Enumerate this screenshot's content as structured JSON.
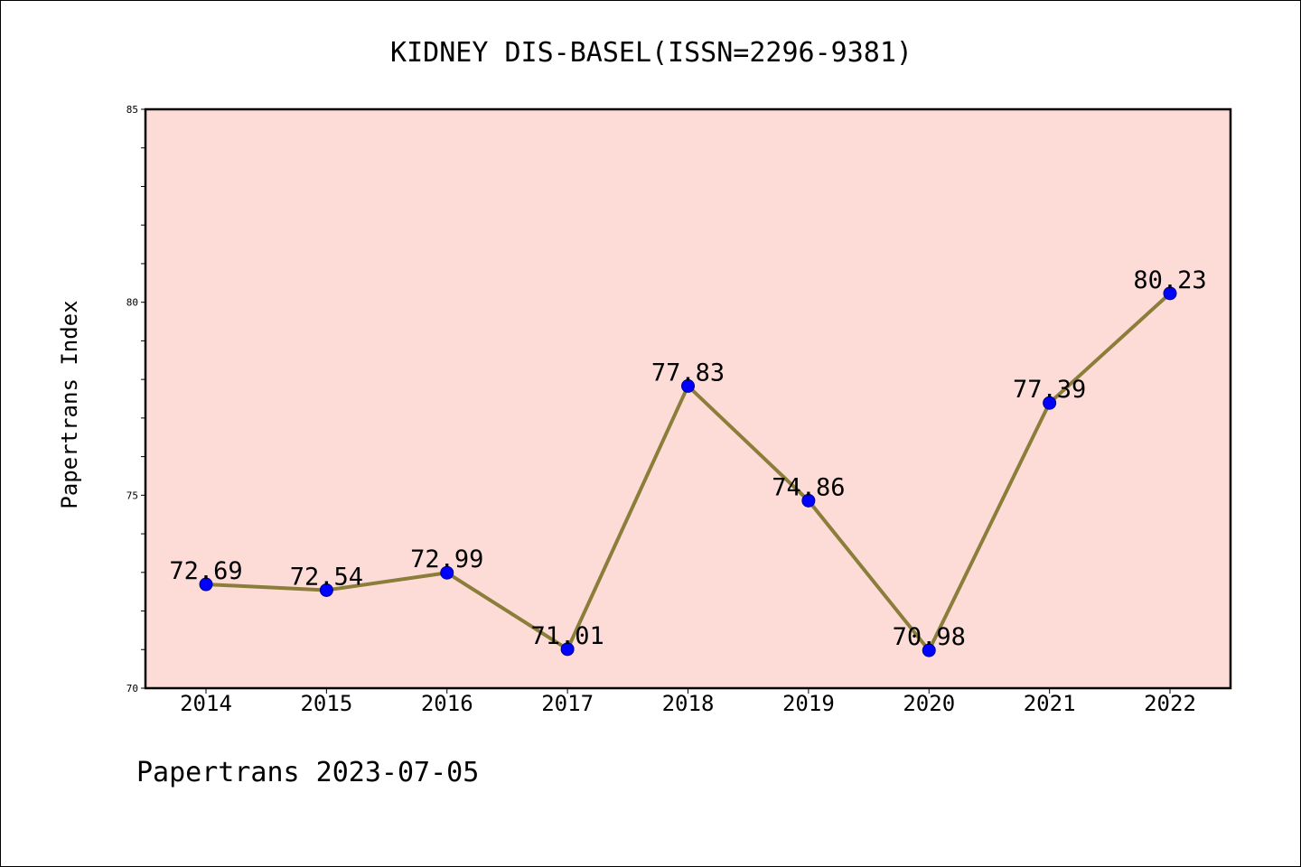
{
  "chart_data": {
    "type": "line",
    "title": "KIDNEY DIS-BASEL(ISSN=2296-9381)",
    "xlabel": "",
    "ylabel": "Papertrans Index",
    "categories": [
      "2014",
      "2015",
      "2016",
      "2017",
      "2018",
      "2019",
      "2020",
      "2021",
      "2022"
    ],
    "series": [
      {
        "values": [
          72.69,
          72.54,
          72.99,
          71.01,
          77.83,
          74.86,
          70.98,
          77.39,
          80.23
        ],
        "labels": [
          "72.69",
          "72.54",
          "72.99",
          "71.01",
          "77.83",
          "74.86",
          "70.98",
          "77.39",
          "80.23"
        ]
      }
    ],
    "ylim": [
      70,
      85
    ],
    "yticks": [
      "70",
      "75",
      "80",
      "85"
    ],
    "grid": false,
    "legend": "none",
    "colors": {
      "plot_background": "#fddcd8",
      "line": "#8b7d3a",
      "marker": "#0000ff",
      "marker_edge": "#00008b"
    }
  },
  "footer": "Papertrans 2023-07-05"
}
